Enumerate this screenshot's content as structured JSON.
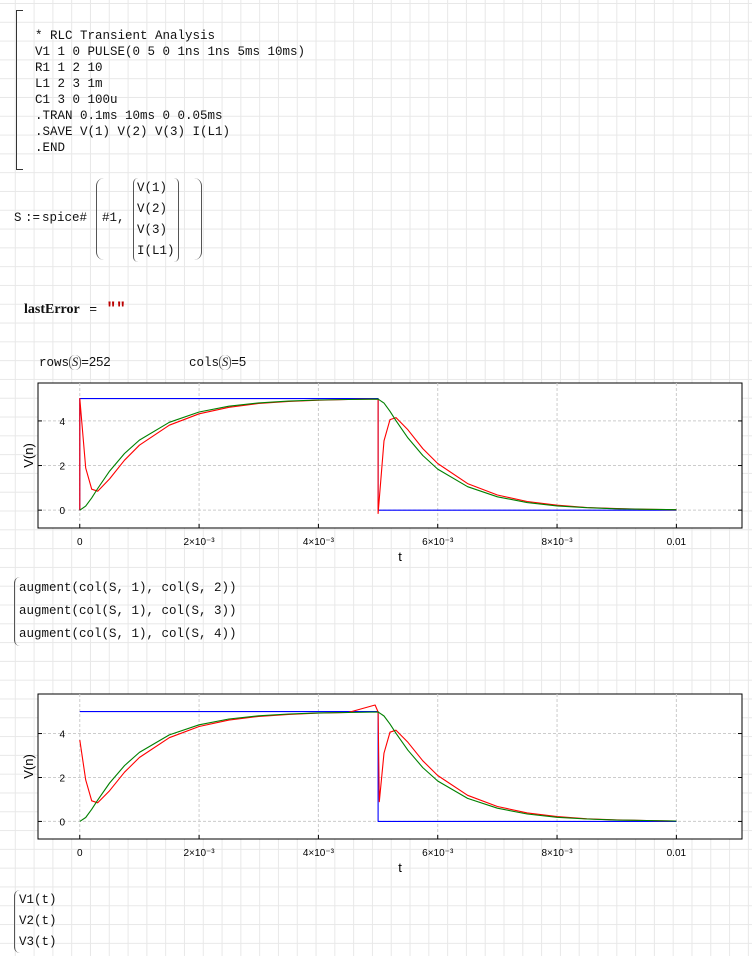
{
  "netlist": {
    "lines": [
      "* RLC Transient Analysis",
      "V1 1 0 PULSE(0 5 0 1ns 1ns 5ms 10ms)",
      "R1 1 2 10",
      "L1 2 3 1m",
      "C1 3 0 100u",
      ".TRAN 0.1ms 10ms 0 0.05ms",
      ".SAVE V(1) V(2) V(3) I(L1)",
      ".END"
    ]
  },
  "spice_expr": {
    "lhs": "S",
    "assign": ":=",
    "func": "spice#",
    "arg1": "#1,",
    "vector": [
      "V(1)",
      "V(2)",
      "V(3)",
      "I(L1)"
    ]
  },
  "last_error": {
    "name": "lastError",
    "eq": "=",
    "value": "\"\""
  },
  "rows": {
    "func": "rows",
    "arg": "S",
    "eq": "=",
    "value": "252"
  },
  "cols": {
    "func": "cols",
    "arg": "S",
    "eq": "=",
    "value": "5"
  },
  "augment_list": [
    "augment(col(S, 1), col(S, 2))",
    "augment(col(S, 1), col(S, 3))",
    "augment(col(S, 1), col(S, 4))"
  ],
  "v_list": [
    "V1(t)",
    "V2(t)",
    "V3(t)"
  ],
  "chart_data": [
    {
      "type": "line",
      "xlabel": "t",
      "ylabel": "V(n)",
      "xlim": [
        -0.0007,
        0.0111
      ],
      "ylim": [
        -0.8,
        5.7
      ],
      "grid": true,
      "x_ticks": [
        0,
        0.002,
        0.004,
        0.006,
        0.008,
        0.01
      ],
      "x_tick_labels": [
        "0",
        "2×10⁻³",
        "4×10⁻³",
        "6×10⁻³",
        "8×10⁻³",
        "0.01"
      ],
      "y_ticks": [
        0,
        2,
        4
      ],
      "y_tick_labels": [
        "0",
        "2",
        "4"
      ],
      "series": [
        {
          "color": "#0000ff",
          "x": [
            0,
            0,
            0.005,
            0.005,
            0.01
          ],
          "y": [
            0,
            5,
            5,
            0,
            0
          ]
        },
        {
          "color": "#ff0000",
          "x": [
            0,
            0,
            0.0001,
            0.0002,
            0.0003,
            0.0005,
            0.00075,
            0.001,
            0.0015,
            0.002,
            0.0025,
            0.003,
            0.0035,
            0.004,
            0.0045,
            0.005,
            0.005,
            0.0051,
            0.0052,
            0.0053,
            0.0055,
            0.00575,
            0.006,
            0.0065,
            0.007,
            0.0075,
            0.008,
            0.0085,
            0.009,
            0.0095,
            0.01
          ],
          "y": [
            0,
            5,
            1.89,
            0.94,
            0.85,
            1.4,
            2.24,
            2.91,
            3.81,
            4.32,
            4.61,
            4.78,
            4.87,
            4.93,
            4.96,
            4.98,
            -0.15,
            3.11,
            4.06,
            4.15,
            3.6,
            2.76,
            2.09,
            1.19,
            0.68,
            0.39,
            0.22,
            0.12,
            0.07,
            0.04,
            0.02
          ]
        },
        {
          "color": "#008000",
          "x": [
            0,
            0.0001,
            0.0002,
            0.0003,
            0.0005,
            0.00075,
            0.001,
            0.0015,
            0.002,
            0.0025,
            0.003,
            0.0035,
            0.004,
            0.0045,
            0.005,
            0.0051,
            0.0052,
            0.0053,
            0.0055,
            0.00575,
            0.006,
            0.0065,
            0.007,
            0.0075,
            0.008,
            0.0085,
            0.009,
            0.0095,
            0.01
          ],
          "y": [
            0,
            0.18,
            0.55,
            0.97,
            1.75,
            2.54,
            3.14,
            3.94,
            4.4,
            4.66,
            4.81,
            4.89,
            4.94,
            4.96,
            4.98,
            4.8,
            4.43,
            4.01,
            3.24,
            2.45,
            1.84,
            1.05,
            0.6,
            0.34,
            0.19,
            0.11,
            0.06,
            0.04,
            0.02
          ]
        }
      ]
    },
    {
      "type": "line",
      "xlabel": "t",
      "ylabel": "V(n)",
      "xlim": [
        -0.0007,
        0.0111
      ],
      "ylim": [
        -0.8,
        5.8
      ],
      "grid": true,
      "x_ticks": [
        0,
        0.002,
        0.004,
        0.006,
        0.008,
        0.01
      ],
      "x_tick_labels": [
        "0",
        "2×10⁻³",
        "4×10⁻³",
        "6×10⁻³",
        "8×10⁻³",
        "0.01"
      ],
      "y_ticks": [
        0,
        2,
        4
      ],
      "y_tick_labels": [
        "0",
        "2",
        "4"
      ],
      "series": [
        {
          "color": "#0000ff",
          "x": [
            0,
            0.005,
            0.005,
            0.01
          ],
          "y": [
            5,
            5,
            0,
            0
          ]
        },
        {
          "color": "#ff0000",
          "x": [
            0,
            0.0001,
            0.0002,
            0.0003,
            0.0005,
            0.00075,
            0.001,
            0.0015,
            0.002,
            0.0025,
            0.003,
            0.0035,
            0.004,
            0.0045,
            0.00495,
            0.005,
            0.00502,
            0.0051,
            0.0052,
            0.0053,
            0.0055,
            0.00575,
            0.006,
            0.0065,
            0.007,
            0.0075,
            0.008,
            0.0085,
            0.009,
            0.0095,
            0.01
          ],
          "y": [
            3.7,
            1.89,
            0.94,
            0.85,
            1.4,
            2.24,
            2.91,
            3.81,
            4.32,
            4.61,
            4.78,
            4.87,
            4.93,
            4.96,
            5.3,
            4.98,
            0.9,
            3.11,
            4.06,
            4.15,
            3.6,
            2.76,
            2.09,
            1.19,
            0.68,
            0.39,
            0.22,
            0.12,
            0.07,
            0.04,
            0.02
          ]
        },
        {
          "color": "#008000",
          "x": [
            0,
            0.0001,
            0.0002,
            0.0003,
            0.0005,
            0.00075,
            0.001,
            0.0015,
            0.002,
            0.0025,
            0.003,
            0.0035,
            0.004,
            0.0045,
            0.005,
            0.0051,
            0.0052,
            0.0053,
            0.0055,
            0.00575,
            0.006,
            0.0065,
            0.007,
            0.0075,
            0.008,
            0.0085,
            0.009,
            0.0095,
            0.01
          ],
          "y": [
            0,
            0.18,
            0.55,
            0.97,
            1.75,
            2.54,
            3.14,
            3.94,
            4.4,
            4.66,
            4.81,
            4.89,
            4.94,
            4.96,
            4.98,
            4.8,
            4.43,
            4.01,
            3.24,
            2.45,
            1.84,
            1.05,
            0.6,
            0.34,
            0.19,
            0.11,
            0.06,
            0.04,
            0.02
          ]
        }
      ]
    }
  ]
}
